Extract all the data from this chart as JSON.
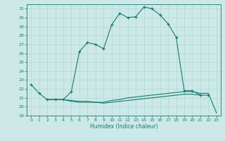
{
  "xlabel": "Humidex (Indice chaleur)",
  "xlim": [
    -0.5,
    23.5
  ],
  "ylim": [
    19,
    31.5
  ],
  "yticks": [
    19,
    20,
    21,
    22,
    23,
    24,
    25,
    26,
    27,
    28,
    29,
    30,
    31
  ],
  "xticks": [
    0,
    1,
    2,
    3,
    4,
    5,
    6,
    7,
    8,
    9,
    10,
    11,
    12,
    13,
    14,
    15,
    16,
    17,
    18,
    19,
    20,
    21,
    22,
    23
  ],
  "bg_color": "#cce9e7",
  "line_color": "#1a7a6e",
  "grid_color": "#b0d8d5",
  "series": [
    {
      "x": [
        0,
        1,
        2,
        3,
        4,
        5,
        6,
        7,
        8,
        9,
        10,
        11,
        12,
        13,
        14,
        15,
        16,
        17,
        18,
        19,
        20,
        21,
        22
      ],
      "y": [
        22.5,
        21.5,
        20.8,
        20.8,
        20.8,
        21.7,
        26.2,
        27.2,
        27.0,
        26.5,
        29.2,
        30.5,
        30.0,
        30.1,
        31.2,
        31.0,
        30.3,
        29.3,
        27.8,
        21.8,
        21.8,
        21.3,
        21.3
      ],
      "has_markers": true
    },
    {
      "x": [
        2,
        3,
        4,
        5,
        6,
        7,
        8,
        9,
        10,
        11,
        12,
        13,
        14,
        15,
        16,
        17,
        18,
        19,
        20,
        21,
        22,
        23
      ],
      "y": [
        20.8,
        20.8,
        20.8,
        20.7,
        20.6,
        20.6,
        20.5,
        20.5,
        20.7,
        20.8,
        21.0,
        21.1,
        21.2,
        21.3,
        21.4,
        21.5,
        21.6,
        21.7,
        21.7,
        21.5,
        21.5,
        19.3
      ],
      "has_markers": false
    },
    {
      "x": [
        2,
        3,
        4,
        5,
        6,
        7,
        8,
        9,
        10,
        11,
        12,
        13,
        14,
        15,
        16,
        17,
        18,
        19,
        20,
        21
      ],
      "y": [
        20.8,
        20.8,
        20.8,
        20.6,
        20.5,
        20.5,
        20.5,
        20.4,
        20.5,
        20.6,
        20.7,
        20.8,
        20.9,
        21.0,
        21.1,
        21.2,
        21.3,
        21.4,
        21.4,
        21.3
      ],
      "has_markers": false
    }
  ]
}
